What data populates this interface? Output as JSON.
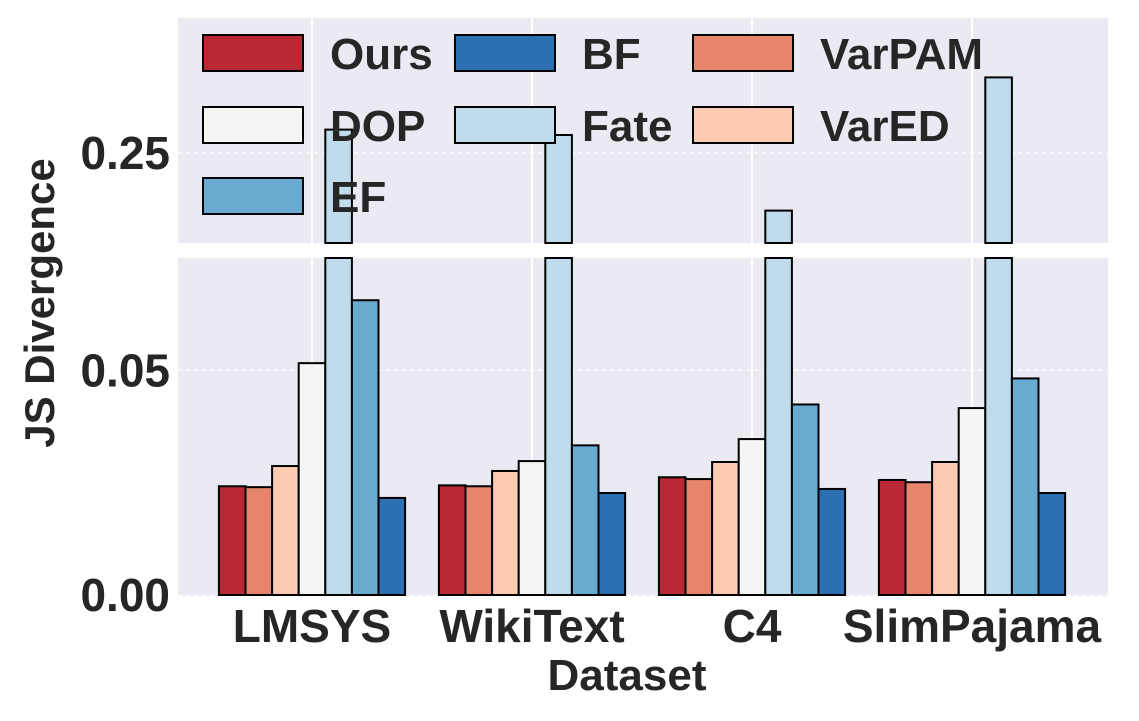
{
  "chart_data": {
    "type": "bar",
    "xlabel": "Dataset",
    "ylabel": "JS Divergence",
    "broken_axis": true,
    "ylim_bottom": [
      0,
      0.075
    ],
    "ylim_top": [
      0.15,
      0.4
    ],
    "yticks_bottom": [
      "0.00",
      "0.05"
    ],
    "yticks_top": [
      "0.25"
    ],
    "grid": true,
    "legend_placement": "top-left",
    "categories": [
      "LMSYS",
      "WikiText",
      "C4",
      "SlimPajama"
    ],
    "series": [
      {
        "name": "Ours",
        "color": "#b92833",
        "values": [
          0.0242,
          0.0244,
          0.0262,
          0.0256
        ]
      },
      {
        "name": "VarPAM",
        "color": "#e6856b",
        "values": [
          0.024,
          0.0242,
          0.0258,
          0.0251
        ]
      },
      {
        "name": "VarED",
        "color": "#fbcbb2",
        "values": [
          0.0287,
          0.0276,
          0.0296,
          0.0296
        ]
      },
      {
        "name": "DOP",
        "color": "#f4f6f6",
        "values": [
          0.0516,
          0.0298,
          0.0347,
          0.0416
        ]
      },
      {
        "name": "Fate",
        "color": "#c0dcec",
        "values": [
          0.276,
          0.27,
          0.186,
          0.334
        ]
      },
      {
        "name": "EF",
        "color": "#68abd0",
        "values": [
          0.0656,
          0.0333,
          0.0424,
          0.0482
        ]
      },
      {
        "name": "BF",
        "color": "#2b70b0",
        "values": [
          0.0216,
          0.0227,
          0.0236,
          0.0227
        ]
      }
    ],
    "legend_order": [
      "Ours",
      "BF",
      "VarPAM",
      "DOP",
      "Fate",
      "VarED",
      "EF"
    ]
  }
}
